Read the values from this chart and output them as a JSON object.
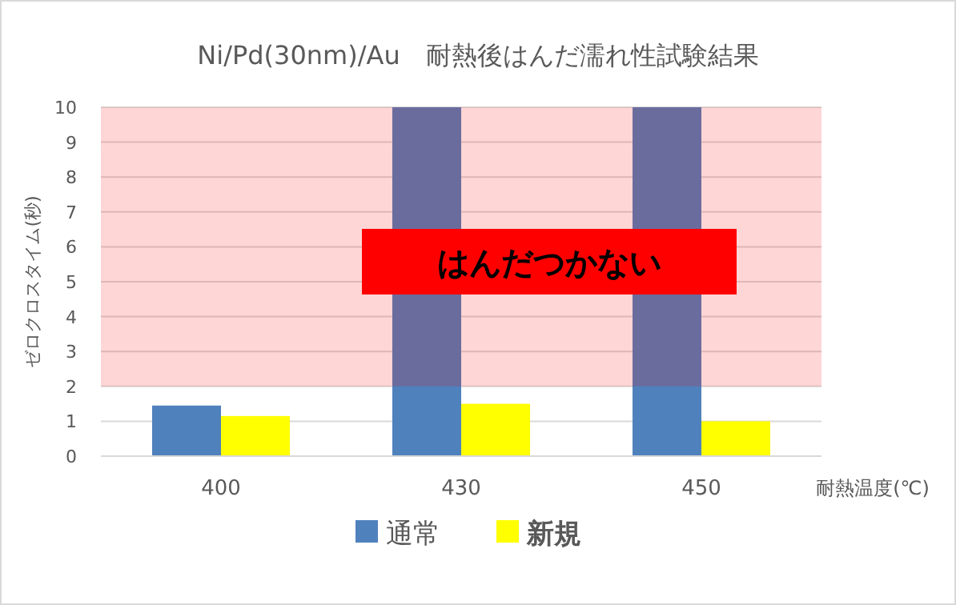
{
  "chart_data": {
    "type": "bar",
    "title": "Ni/Pd(30nm)/Au　耐熱後はんだ濡れ性試験結果",
    "xlabel": "耐熱温度(℃)",
    "ylabel": "ゼロクロスタイム(秒)",
    "categories": [
      "400",
      "430",
      "450"
    ],
    "series": [
      {
        "name": "通常",
        "color": "#4f81bd",
        "values": [
          1.45,
          10,
          10
        ]
      },
      {
        "name": "新規",
        "color": "#ffff00",
        "values": [
          1.15,
          1.5,
          1.0
        ]
      }
    ],
    "ylim": [
      0,
      10
    ],
    "yticks": [
      0,
      1,
      2,
      3,
      4,
      5,
      6,
      7,
      8,
      9,
      10
    ],
    "grid": "y",
    "legend": "bottom",
    "bands": [
      {
        "axis": "y",
        "from": 2,
        "to": 10,
        "color": "#ff0000"
      }
    ],
    "annotations": [
      "はんだつかない"
    ]
  }
}
